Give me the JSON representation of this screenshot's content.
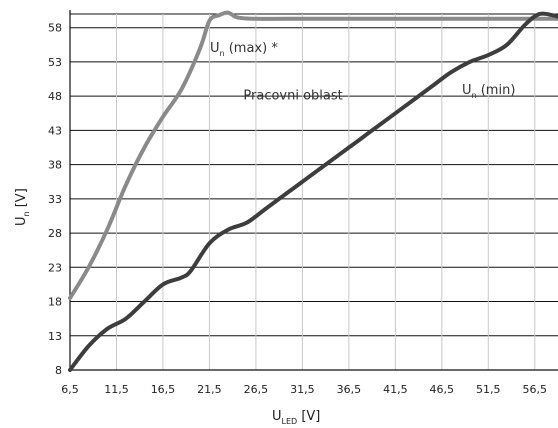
{
  "chart_data": {
    "type": "line",
    "xlim": [
      6.5,
      59
    ],
    "ylim": [
      8,
      60
    ],
    "x_ticks": [
      6.5,
      11.5,
      16.5,
      21.5,
      26.5,
      31.5,
      36.5,
      41.5,
      46.5,
      51.5,
      56.5
    ],
    "x_tick_labels": [
      "6,5",
      "11,5",
      "16,5",
      "21,5",
      "26,5",
      "31,5",
      "36,5",
      "41,5",
      "46,5",
      "51,5",
      "56,5"
    ],
    "y_ticks": [
      8,
      13,
      18,
      23,
      28,
      33,
      38,
      43,
      48,
      53,
      58
    ],
    "y_tick_labels": [
      "8",
      "13",
      "18",
      "23",
      "28",
      "33",
      "38",
      "43",
      "48",
      "53",
      "58"
    ],
    "xlabel": {
      "main": "U",
      "sub": "LED",
      "unit": " [V]"
    },
    "ylabel": {
      "main": "U",
      "sub": "n",
      "unit": " [V]"
    },
    "grid": "both",
    "series": [
      {
        "name": "Un (max) *",
        "label": {
          "main": "U",
          "sub": "n",
          "rest": " (max) *"
        },
        "color": "#8a8a8a",
        "x": [
          6.5,
          8.5,
          10.5,
          12.5,
          14.5,
          16.5,
          18.5,
          20.5,
          21.5,
          22.5,
          23.5,
          24.5,
          26.5,
          30,
          40,
          50,
          57,
          59
        ],
        "y": [
          18.5,
          23,
          28.5,
          35,
          40.5,
          45,
          49,
          55,
          59,
          59.8,
          60.2,
          59.5,
          59.3,
          59.3,
          59.3,
          59.3,
          59.3,
          59.3
        ]
      },
      {
        "name": "Un (min)",
        "label": {
          "main": "U",
          "sub": "n",
          "rest": " (min)"
        },
        "color": "#3d3d3d",
        "x": [
          6.5,
          8.5,
          10.5,
          12.5,
          14.5,
          16.5,
          18.5,
          19.5,
          21.5,
          23.5,
          25.5,
          27.5,
          29.5,
          31.5,
          33.5,
          35.5,
          37.5,
          39.5,
          41.5,
          43.5,
          45.5,
          47.5,
          49.5,
          51.5,
          53.5,
          55.5,
          57,
          58.5,
          59
        ],
        "y": [
          8,
          11.5,
          14,
          15.5,
          18,
          20.5,
          21.5,
          22.5,
          26.5,
          28.5,
          29.5,
          31.5,
          33.5,
          35.5,
          37.5,
          39.5,
          41.5,
          43.5,
          45.5,
          47.5,
          49.5,
          51.5,
          53,
          54,
          55.5,
          58.5,
          60,
          59.8,
          59.6
        ]
      }
    ],
    "annotations": [
      {
        "text": "Pracovni oblast",
        "x": 30.5,
        "y": 47.5
      }
    ]
  }
}
